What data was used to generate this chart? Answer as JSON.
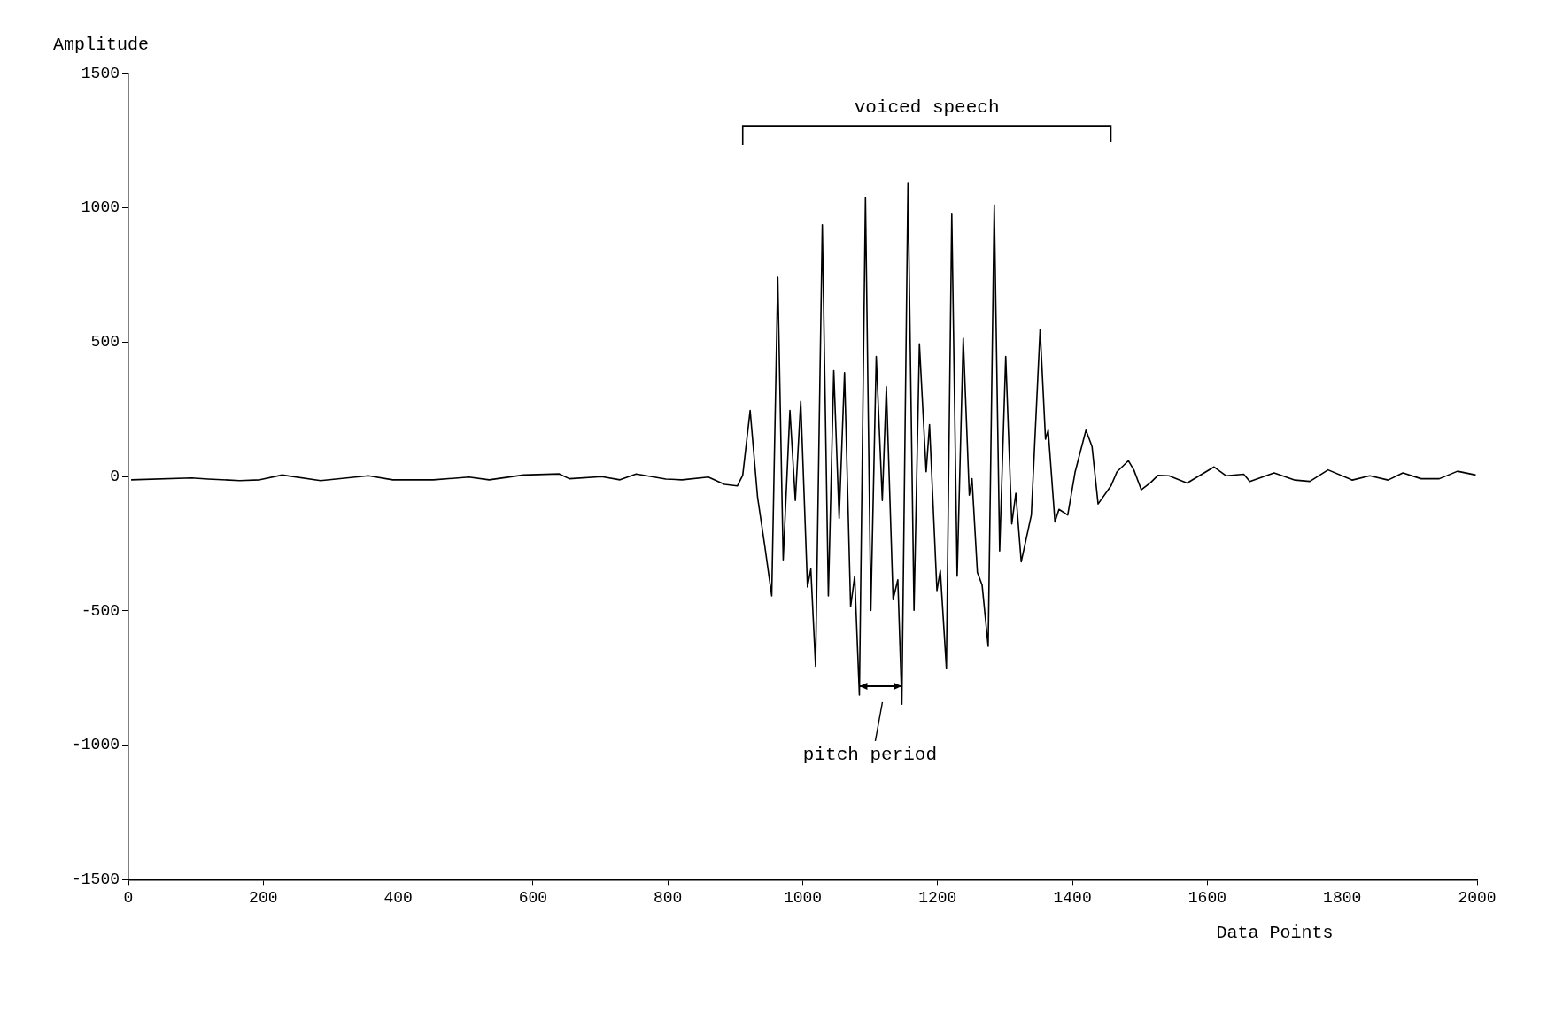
{
  "chart_data": {
    "type": "line",
    "xlabel": "Data Points",
    "ylabel": "Amplitude",
    "xlim": [
      0,
      2000
    ],
    "ylim": [
      -1500,
      1500
    ],
    "xticks": [
      0,
      200,
      400,
      600,
      800,
      1000,
      1200,
      1400,
      1600,
      1800,
      2000
    ],
    "yticks": [
      -1500,
      -1000,
      -500,
      0,
      500,
      1000,
      1500
    ],
    "series": [
      {
        "color": "#000000",
        "x": [
          4,
          94,
          118,
          165,
          195,
          228,
          285,
          356,
          392,
          452,
          505,
          535,
          586,
          639,
          654,
          702,
          729,
          753,
          797,
          821,
          860,
          884,
          903,
          911,
          922,
          933,
          944,
          954,
          963,
          971,
          981,
          989,
          997,
          1007,
          1012,
          1019,
          1029,
          1038,
          1046,
          1054,
          1062,
          1071,
          1077,
          1084,
          1093,
          1101,
          1109,
          1118,
          1124,
          1134,
          1141,
          1147,
          1156,
          1165,
          1173,
          1183,
          1188,
          1199,
          1204,
          1213,
          1221,
          1229,
          1238,
          1247,
          1251,
          1259,
          1266,
          1275,
          1284,
          1292,
          1301,
          1310,
          1316,
          1324,
          1339,
          1352,
          1360,
          1364,
          1374,
          1380,
          1393,
          1404,
          1420,
          1429,
          1438,
          1457,
          1466,
          1483,
          1491,
          1502,
          1516,
          1527,
          1543,
          1570,
          1610,
          1628,
          1654,
          1663,
          1699,
          1730,
          1752,
          1779,
          1815,
          1841,
          1868,
          1890,
          1917,
          1944,
          1971,
          1998
        ],
        "values": [
          -12,
          -5,
          -9,
          -15,
          -12,
          6,
          -15,
          3,
          -12,
          -12,
          -2,
          -12,
          6,
          10,
          -8,
          0,
          -12,
          10,
          -9,
          -12,
          -2,
          -29,
          -35,
          5,
          246,
          -76,
          -263,
          -444,
          742,
          -310,
          246,
          -89,
          280,
          -411,
          -344,
          -706,
          937,
          -444,
          394,
          -156,
          387,
          -484,
          -371,
          -813,
          1038,
          -498,
          447,
          -89,
          334,
          -458,
          -384,
          -847,
          1091,
          -498,
          494,
          18,
          193,
          -424,
          -350,
          -713,
          977,
          -371,
          515,
          -69,
          -8,
          -357,
          -404,
          -632,
          1011,
          -277,
          447,
          -176,
          -62,
          -317,
          -143,
          548,
          139,
          173,
          -169,
          -122,
          -143,
          18,
          173,
          112,
          -102,
          -35,
          18,
          59,
          25,
          -49,
          -22,
          5,
          3,
          -24,
          36,
          3,
          9,
          -18,
          14,
          -13,
          -18,
          25,
          -13,
          3,
          -13,
          14,
          -8,
          -8,
          20,
          6
        ]
      }
    ],
    "annotations": [
      "voiced speech",
      "pitch period"
    ]
  }
}
